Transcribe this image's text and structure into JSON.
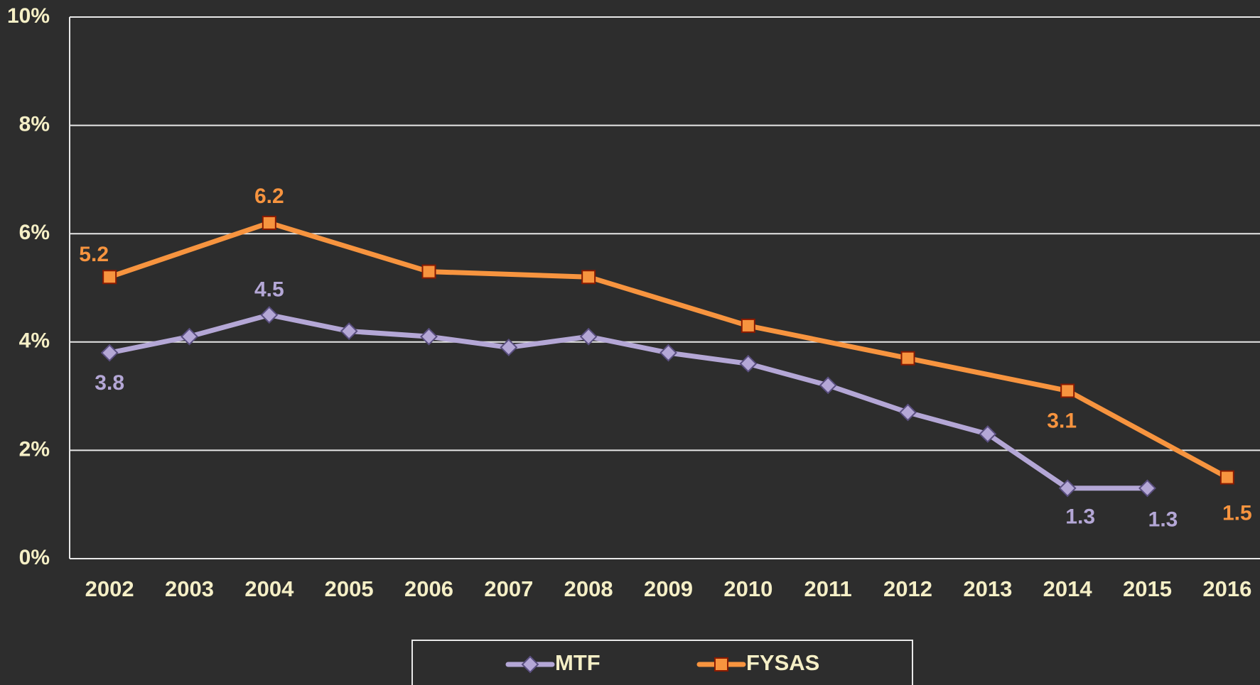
{
  "chart_data": {
    "type": "line",
    "xlim": [
      2001.5,
      2016.5
    ],
    "xticks": [
      2002,
      2003,
      2004,
      2005,
      2006,
      2007,
      2008,
      2009,
      2010,
      2011,
      2012,
      2013,
      2014,
      2015,
      2016
    ],
    "ylim": [
      0,
      10
    ],
    "yticks": [
      {
        "value": 0,
        "label": "0%"
      },
      {
        "value": 2,
        "label": "2%"
      },
      {
        "value": 4,
        "label": "4%"
      },
      {
        "value": 6,
        "label": "6%"
      },
      {
        "value": 8,
        "label": "8%"
      },
      {
        "value": 10,
        "label": "10%"
      }
    ],
    "grid": true,
    "legend": "bottom",
    "series": [
      {
        "name": "MTF",
        "color": "#b4a7d6",
        "marker": "diamond",
        "x": [
          2002,
          2003,
          2004,
          2005,
          2006,
          2007,
          2008,
          2009,
          2010,
          2011,
          2012,
          2013,
          2014,
          2015
        ],
        "values": [
          3.8,
          4.1,
          4.5,
          4.2,
          4.1,
          3.9,
          4.1,
          3.8,
          3.6,
          3.2,
          2.7,
          2.3,
          1.3,
          1.3
        ],
        "value_labels": [
          "3.8",
          null,
          "4.5",
          null,
          null,
          null,
          null,
          null,
          null,
          null,
          null,
          null,
          "1.3",
          "1.3"
        ]
      },
      {
        "name": "FYSAS",
        "color": "#f7943f",
        "marker": "square",
        "x": [
          2002,
          2004,
          2006,
          2008,
          2010,
          2012,
          2014,
          2016
        ],
        "values": [
          5.2,
          6.2,
          5.3,
          5.2,
          4.3,
          3.7,
          3.1,
          1.5
        ],
        "value_labels": [
          "5.2",
          "6.2",
          null,
          null,
          null,
          null,
          "3.1",
          "1.5"
        ]
      }
    ]
  }
}
